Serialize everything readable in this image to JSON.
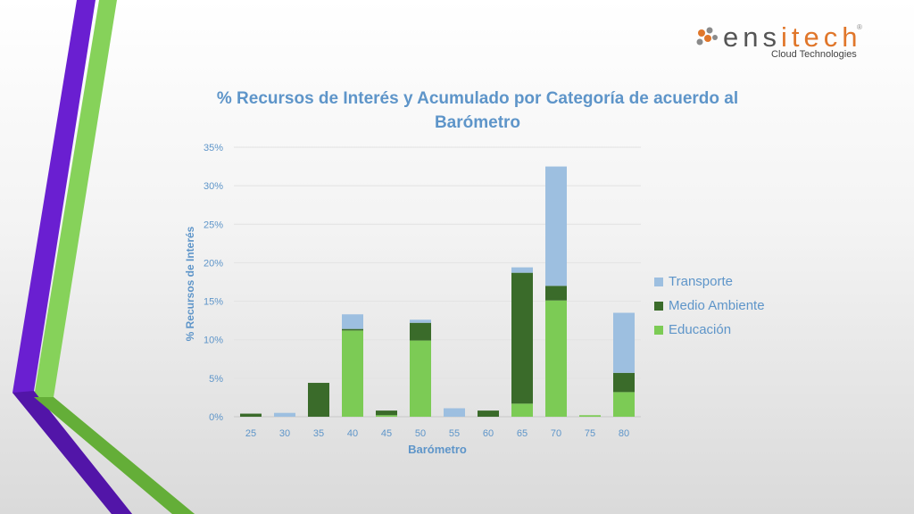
{
  "logo": {
    "brand_prefix": "ens",
    "brand_accent": "i",
    "brand_accent2": "tech",
    "registered": "®",
    "tagline": "Cloud Technologies"
  },
  "chart_data": {
    "type": "stacked-bar",
    "title": "% Recursos de Interés y Acumulado por Categoría de acuerdo al Barómetro",
    "xlabel": "Barómetro",
    "ylabel": "% Recursos de Interés",
    "ylim": [
      0,
      35
    ],
    "yticks": [
      "0%",
      "5%",
      "10%",
      "15%",
      "20%",
      "25%",
      "30%",
      "35%"
    ],
    "categories": [
      "25",
      "30",
      "35",
      "40",
      "45",
      "50",
      "55",
      "60",
      "65",
      "70",
      "75",
      "80"
    ],
    "series": [
      {
        "name": "Educación",
        "color": "#7ccb55",
        "values": [
          0,
          0,
          0,
          11.2,
          0.2,
          9.9,
          0,
          0,
          1.7,
          15.1,
          0.2,
          3.2
        ]
      },
      {
        "name": "Medio Ambiente",
        "color": "#3a6b2a",
        "values": [
          0.4,
          0,
          4.4,
          0.2,
          0.6,
          2.3,
          0,
          0.8,
          17.0,
          1.9,
          0,
          2.5
        ]
      },
      {
        "name": "Transporte",
        "color": "#9dbfe0",
        "values": [
          0,
          0.5,
          0,
          1.9,
          0,
          0.4,
          1.1,
          0,
          0.7,
          15.5,
          0,
          7.8
        ]
      }
    ],
    "legend": [
      "Transporte",
      "Medio Ambiente",
      "Educación"
    ],
    "grid": true
  }
}
